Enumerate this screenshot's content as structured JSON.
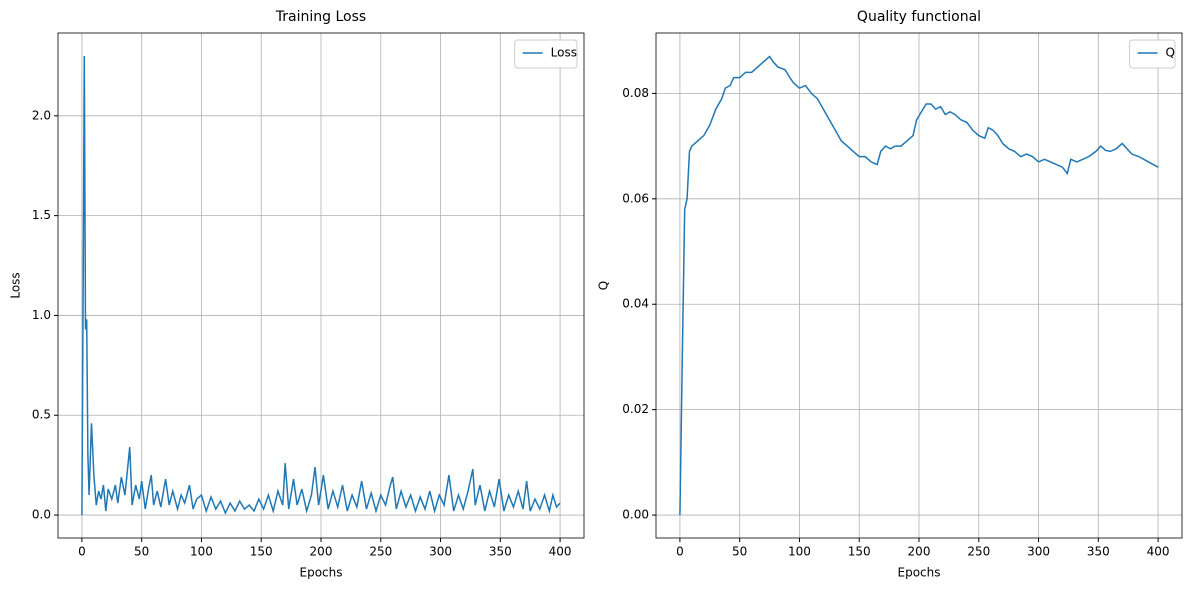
{
  "chart_data": [
    {
      "type": "line",
      "title": "Training Loss",
      "xlabel": "Epochs",
      "ylabel": "Loss",
      "grid": true,
      "legend": "upper right",
      "x": [
        0,
        1,
        2,
        3,
        4,
        5,
        6,
        8,
        10,
        12,
        14,
        16,
        18,
        20,
        22,
        25,
        28,
        30,
        33,
        36,
        40,
        42,
        45,
        48,
        50,
        53,
        56,
        58,
        60,
        63,
        66,
        70,
        73,
        76,
        80,
        83,
        86,
        90,
        93,
        96,
        100,
        104,
        108,
        112,
        116,
        120,
        124,
        128,
        132,
        136,
        140,
        144,
        148,
        152,
        156,
        160,
        164,
        168,
        170,
        173,
        177,
        180,
        184,
        188,
        192,
        195,
        198,
        202,
        206,
        210,
        214,
        218,
        222,
        226,
        230,
        234,
        238,
        242,
        246,
        250,
        254,
        258,
        260,
        263,
        267,
        271,
        275,
        279,
        283,
        287,
        291,
        295,
        299,
        303,
        307,
        311,
        315,
        319,
        323,
        327,
        329,
        333,
        337,
        341,
        345,
        349,
        353,
        357,
        361,
        365,
        369,
        372,
        375,
        379,
        383,
        387,
        391,
        394,
        397,
        400
      ],
      "series": [
        {
          "name": "Loss",
          "color": "#1f77b4",
          "values": [
            0,
            1.1,
            2.3,
            0.93,
            0.98,
            0.3,
            0.1,
            0.46,
            0.2,
            0.05,
            0.12,
            0.08,
            0.15,
            0.02,
            0.13,
            0.08,
            0.15,
            0.06,
            0.19,
            0.1,
            0.34,
            0.05,
            0.15,
            0.08,
            0.17,
            0.03,
            0.14,
            0.2,
            0.05,
            0.12,
            0.04,
            0.18,
            0.05,
            0.12,
            0.03,
            0.1,
            0.06,
            0.15,
            0.03,
            0.08,
            0.1,
            0.02,
            0.09,
            0.03,
            0.07,
            0.01,
            0.06,
            0.02,
            0.07,
            0.03,
            0.05,
            0.02,
            0.08,
            0.03,
            0.1,
            0.02,
            0.12,
            0.05,
            0.26,
            0.03,
            0.18,
            0.05,
            0.13,
            0.02,
            0.1,
            0.24,
            0.05,
            0.2,
            0.03,
            0.12,
            0.04,
            0.15,
            0.02,
            0.1,
            0.04,
            0.17,
            0.03,
            0.11,
            0.02,
            0.1,
            0.05,
            0.15,
            0.19,
            0.03,
            0.12,
            0.04,
            0.1,
            0.02,
            0.09,
            0.03,
            0.12,
            0.02,
            0.1,
            0.05,
            0.2,
            0.02,
            0.1,
            0.03,
            0.12,
            0.23,
            0.05,
            0.15,
            0.02,
            0.12,
            0.04,
            0.18,
            0.02,
            0.1,
            0.04,
            0.12,
            0.03,
            0.17,
            0.02,
            0.08,
            0.03,
            0.1,
            0.02,
            0.1,
            0.04,
            0.06
          ]
        }
      ],
      "xlim": [
        -20,
        420
      ],
      "xticks": [
        0,
        50,
        100,
        150,
        200,
        250,
        300,
        350,
        400
      ],
      "ylim": [
        -0.115,
        2.415
      ],
      "yticks": [
        {
          "value": 0,
          "label": "0.0"
        },
        0.5,
        {
          "value": 1,
          "label": "1.0"
        },
        1.5,
        {
          "value": 2,
          "label": "2.0"
        }
      ]
    },
    {
      "type": "line",
      "title": "Quality functional",
      "xlabel": "Epochs",
      "ylabel": "Q",
      "grid": true,
      "legend": "upper right",
      "x": [
        0,
        2,
        4,
        6,
        8,
        10,
        15,
        20,
        25,
        30,
        35,
        38,
        42,
        45,
        50,
        55,
        60,
        65,
        70,
        75,
        78,
        82,
        88,
        92,
        95,
        100,
        105,
        110,
        115,
        120,
        125,
        130,
        135,
        140,
        145,
        150,
        155,
        160,
        165,
        168,
        172,
        176,
        180,
        185,
        190,
        195,
        198,
        202,
        206,
        210,
        214,
        218,
        222,
        226,
        230,
        235,
        240,
        245,
        250,
        255,
        258,
        262,
        266,
        270,
        275,
        280,
        285,
        290,
        295,
        300,
        305,
        310,
        315,
        320,
        324,
        327,
        332,
        337,
        342,
        348,
        352,
        356,
        360,
        365,
        370,
        374,
        378,
        384,
        388,
        392,
        396,
        400
      ],
      "series": [
        {
          "name": "Q",
          "color": "#1f77b4",
          "values": [
            0,
            0.03,
            0.058,
            0.06,
            0.069,
            0.07,
            0.071,
            0.072,
            0.074,
            0.077,
            0.079,
            0.081,
            0.0815,
            0.083,
            0.083,
            0.084,
            0.084,
            0.085,
            0.086,
            0.087,
            0.086,
            0.085,
            0.0845,
            0.083,
            0.082,
            0.081,
            0.0815,
            0.08,
            0.079,
            0.077,
            0.075,
            0.073,
            0.071,
            0.07,
            0.069,
            0.068,
            0.068,
            0.067,
            0.0665,
            0.069,
            0.07,
            0.0695,
            0.07,
            0.07,
            0.071,
            0.072,
            0.075,
            0.0765,
            0.078,
            0.078,
            0.077,
            0.0775,
            0.076,
            0.0765,
            0.076,
            0.075,
            0.0745,
            0.073,
            0.072,
            0.0715,
            0.0735,
            0.073,
            0.072,
            0.0705,
            0.0695,
            0.069,
            0.068,
            0.0685,
            0.068,
            0.067,
            0.0675,
            0.067,
            0.0665,
            0.066,
            0.0648,
            0.0675,
            0.067,
            0.0675,
            0.068,
            0.069,
            0.07,
            0.0692,
            0.069,
            0.0695,
            0.0705,
            0.0695,
            0.0685,
            0.068,
            0.0675,
            0.067,
            0.0665,
            0.066
          ]
        }
      ],
      "xlim": [
        -20,
        420
      ],
      "xticks": [
        0,
        50,
        100,
        150,
        200,
        250,
        300,
        350,
        400
      ],
      "ylim": [
        -0.00435,
        0.09146
      ],
      "yticks": [
        {
          "value": 0,
          "label": "0.00"
        },
        0.02,
        0.04,
        0.06,
        0.08
      ]
    }
  ]
}
